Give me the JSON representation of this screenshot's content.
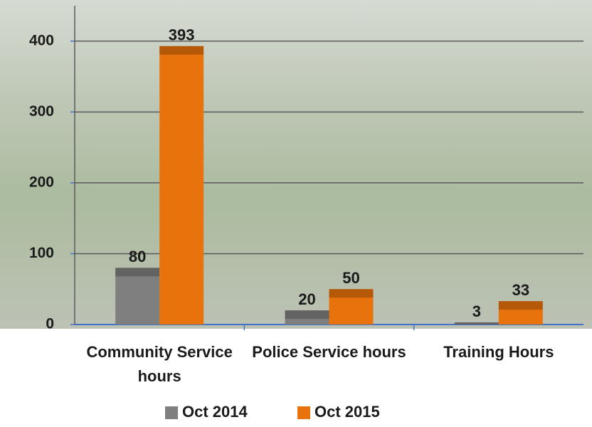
{
  "chart_data": {
    "type": "bar",
    "categories": [
      "Community Service hours",
      "Police Service hours",
      "Training Hours"
    ],
    "series": [
      {
        "name": "Oct 2014",
        "color": "#7f7f7f",
        "values": [
          80,
          20,
          3
        ]
      },
      {
        "name": "Oct 2015",
        "color": "#e8720c",
        "values": [
          393,
          50,
          33
        ]
      }
    ],
    "ylim": [
      0,
      450
    ],
    "yticks": [
      0,
      100,
      200,
      300,
      400
    ],
    "grid": true
  }
}
